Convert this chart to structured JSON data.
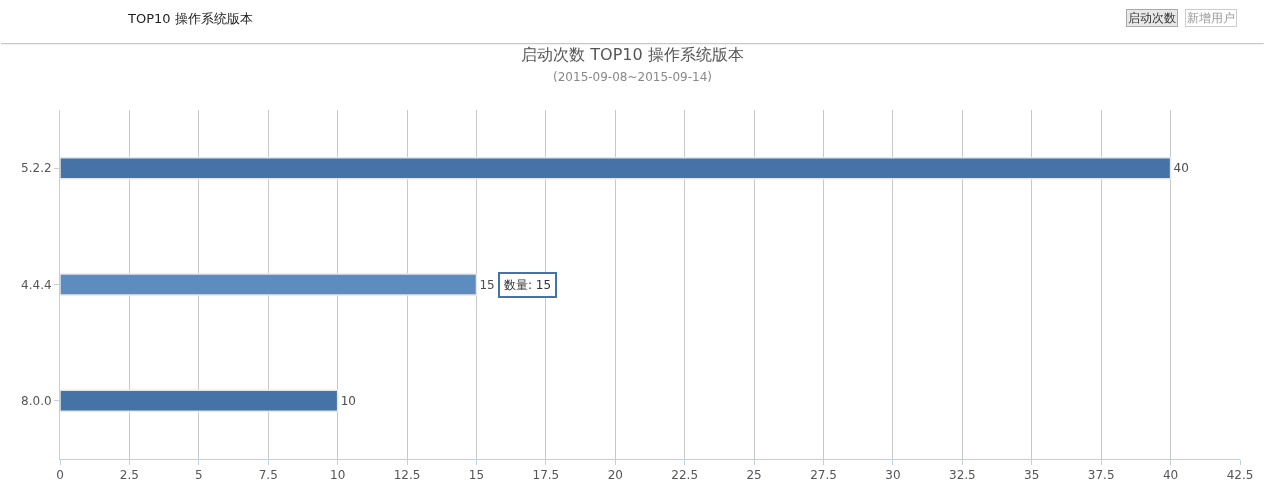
{
  "chart_data": {
    "type": "bar",
    "orientation": "horizontal",
    "title": "启动次数 TOP10 操作系统版本",
    "subtitle": "(2015-09-08~2015-09-14)",
    "categories": [
      "5.2.2",
      "4.4.4",
      "8.0.0"
    ],
    "values": [
      40,
      15,
      10
    ],
    "colors": [
      "#4572a7",
      "#5d8cc1",
      "#4572a7"
    ],
    "xlim": [
      0,
      42.5
    ],
    "xticks": [
      0,
      2.5,
      5,
      7.5,
      10,
      12.5,
      15,
      17.5,
      20,
      22.5,
      25,
      27.5,
      30,
      32.5,
      35,
      37.5,
      40,
      42.5
    ],
    "grid": "x",
    "data_labels": true,
    "annotations": [
      "TOP10 操作系统版本",
      "启动次数",
      "新增用户",
      {
        "text": "数量: 15",
        "x": 15,
        "y": "4.4.4"
      }
    ]
  }
}
